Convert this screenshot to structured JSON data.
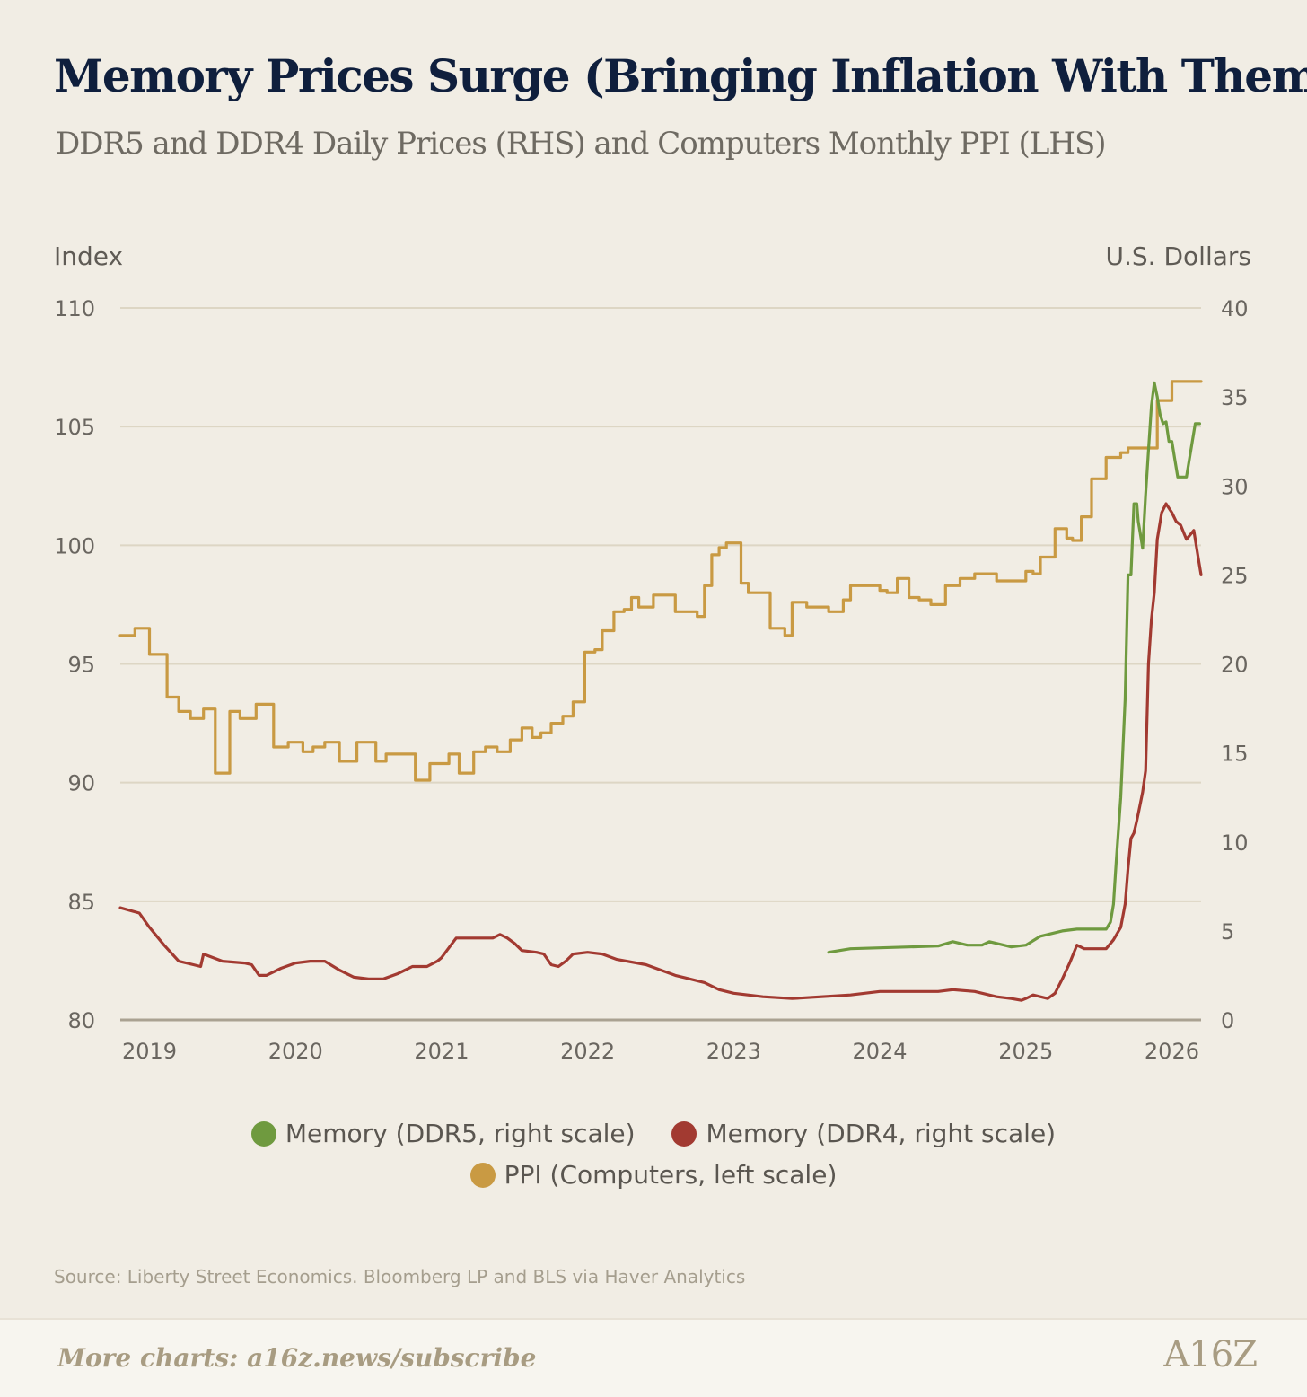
{
  "title": "Memory Prices Surge (Bringing Inflation With Them)",
  "subtitle": "DDR5 and DDR4 Daily Prices (RHS) and Computers Monthly PPI (LHS)",
  "source": "Source: Liberty Street Economics. Bloomberg LP and BLS via Haver Analytics",
  "footer": {
    "cta": "More charts: a16z.news/subscribe",
    "brand": "A16Z"
  },
  "colors": {
    "ddr5": "#6f9a3f",
    "ddr4": "#a23a31",
    "ppi": "#c99a43"
  },
  "chart_data": {
    "type": "line",
    "title": "Memory Prices Surge (Bringing Inflation With Them)",
    "subtitle": "DDR5 and DDR4 Daily Prices (RHS) and Computers Monthly PPI (LHS)",
    "ylabel_left": "Index",
    "ylabel_right": "U.S. Dollars",
    "ylim_left": [
      80,
      110
    ],
    "ylim_right": [
      0,
      40
    ],
    "xlim": [
      2018.8,
      2026.2
    ],
    "yticks_left": [
      "80",
      "85",
      "90",
      "95",
      "100",
      "105",
      "110"
    ],
    "yticks_right": [
      "0",
      "5",
      "10",
      "15",
      "20",
      "25",
      "30",
      "35",
      "40"
    ],
    "xticks": [
      "2019",
      "2020",
      "2021",
      "2022",
      "2023",
      "2024",
      "2025",
      "2026"
    ],
    "grid": true,
    "legend_position": "bottom",
    "series": [
      {
        "name": "Memory (DDR5, right scale)",
        "axis": "right",
        "color": "#6f9a3f",
        "step": false,
        "x": [
          2023.65,
          2023.8,
          2024.0,
          2024.2,
          2024.4,
          2024.5,
          2024.6,
          2024.7,
          2024.75,
          2024.85,
          2024.9,
          2025.0,
          2025.1,
          2025.25,
          2025.35,
          2025.4,
          2025.55,
          2025.58,
          2025.6,
          2025.62,
          2025.65,
          2025.68,
          2025.7,
          2025.72,
          2025.74,
          2025.76,
          2025.77,
          2025.78,
          2025.8,
          2025.82,
          2025.84,
          2025.86,
          2025.88,
          2025.9,
          2025.92,
          2025.94,
          2025.96,
          2025.98,
          2026.0,
          2026.02,
          2026.04,
          2026.06,
          2026.1,
          2026.13,
          2026.16,
          2026.19
        ],
        "y": [
          3.8,
          4.0,
          4.05,
          4.1,
          4.15,
          4.4,
          4.2,
          4.2,
          4.4,
          4.2,
          4.1,
          4.2,
          4.7,
          5.0,
          5.1,
          5.1,
          5.1,
          5.5,
          6.5,
          9.0,
          12.5,
          18.0,
          25.0,
          25.0,
          29.0,
          29.0,
          28.0,
          27.5,
          26.5,
          29.5,
          32.0,
          34.5,
          35.8,
          35.0,
          34.0,
          33.5,
          33.6,
          32.5,
          32.5,
          31.5,
          30.5,
          30.5,
          30.5,
          32.0,
          33.5,
          33.5
        ]
      },
      {
        "name": "Memory (DDR4, right scale)",
        "axis": "right",
        "color": "#a23a31",
        "step": false,
        "x": [
          2018.8,
          2018.93,
          2019.0,
          2019.1,
          2019.2,
          2019.3,
          2019.35,
          2019.37,
          2019.5,
          2019.65,
          2019.7,
          2019.75,
          2019.8,
          2019.9,
          2020.0,
          2020.1,
          2020.2,
          2020.3,
          2020.4,
          2020.5,
          2020.6,
          2020.7,
          2020.75,
          2020.8,
          2020.9,
          2020.97,
          2021.0,
          2021.1,
          2021.2,
          2021.3,
          2021.35,
          2021.4,
          2021.45,
          2021.5,
          2021.55,
          2021.65,
          2021.7,
          2021.75,
          2021.8,
          2021.85,
          2021.9,
          2022.0,
          2022.1,
          2022.2,
          2022.4,
          2022.6,
          2022.8,
          2022.9,
          2023.0,
          2023.2,
          2023.4,
          2023.6,
          2023.8,
          2024.0,
          2024.2,
          2024.4,
          2024.5,
          2024.65,
          2024.8,
          2024.9,
          2024.97,
          2025.0,
          2025.05,
          2025.1,
          2025.15,
          2025.2,
          2025.25,
          2025.3,
          2025.35,
          2025.4,
          2025.45,
          2025.5,
          2025.55,
          2025.6,
          2025.65,
          2025.68,
          2025.7,
          2025.72,
          2025.74,
          2025.76,
          2025.78,
          2025.8,
          2025.82,
          2025.84,
          2025.86,
          2025.88,
          2025.9,
          2025.93,
          2025.96,
          2026.0,
          2026.03,
          2026.06,
          2026.1,
          2026.15,
          2026.18,
          2026.2
        ],
        "y": [
          6.3,
          6.0,
          5.2,
          4.2,
          3.3,
          3.1,
          3.0,
          3.7,
          3.3,
          3.2,
          3.1,
          2.5,
          2.5,
          2.9,
          3.2,
          3.3,
          3.3,
          2.8,
          2.4,
          2.3,
          2.3,
          2.6,
          2.8,
          3.0,
          3.0,
          3.3,
          3.5,
          4.6,
          4.6,
          4.6,
          4.6,
          4.8,
          4.6,
          4.3,
          3.9,
          3.8,
          3.7,
          3.1,
          3.0,
          3.3,
          3.7,
          3.8,
          3.7,
          3.4,
          3.1,
          2.5,
          2.1,
          1.7,
          1.5,
          1.3,
          1.2,
          1.3,
          1.4,
          1.6,
          1.6,
          1.6,
          1.7,
          1.6,
          1.3,
          1.2,
          1.1,
          1.2,
          1.4,
          1.3,
          1.2,
          1.5,
          2.3,
          3.2,
          4.2,
          4.0,
          4.0,
          4.0,
          4.0,
          4.5,
          5.2,
          6.5,
          8.5,
          10.2,
          10.5,
          11.2,
          12.0,
          12.8,
          14.0,
          20.0,
          22.5,
          24.0,
          27.0,
          28.5,
          29.0,
          28.5,
          28.0,
          27.8,
          27.0,
          27.5,
          26.0,
          25.0
        ]
      },
      {
        "name": "PPI (Computers, left scale)",
        "axis": "left",
        "color": "#c99a43",
        "step": true,
        "x": [
          2018.8,
          2018.9,
          2019.0,
          2019.12,
          2019.2,
          2019.28,
          2019.37,
          2019.45,
          2019.55,
          2019.62,
          2019.73,
          2019.85,
          2019.95,
          2020.05,
          2020.12,
          2020.2,
          2020.3,
          2020.42,
          2020.55,
          2020.62,
          2020.7,
          2020.82,
          2020.92,
          2020.98,
          2021.05,
          2021.12,
          2021.22,
          2021.3,
          2021.38,
          2021.47,
          2021.55,
          2021.62,
          2021.68,
          2021.75,
          2021.83,
          2021.9,
          2021.95,
          2021.98,
          2022.05,
          2022.1,
          2022.18,
          2022.25,
          2022.3,
          2022.35,
          2022.45,
          2022.6,
          2022.75,
          2022.8,
          2022.85,
          2022.9,
          2022.95,
          2023.05,
          2023.1,
          2023.25,
          2023.35,
          2023.4,
          2023.5,
          2023.65,
          2023.75,
          2023.8,
          2024.0,
          2024.05,
          2024.12,
          2024.2,
          2024.27,
          2024.35,
          2024.45,
          2024.55,
          2024.65,
          2024.8,
          2024.97,
          2025.0,
          2025.05,
          2025.1,
          2025.2,
          2025.28,
          2025.32,
          2025.38,
          2025.45,
          2025.55,
          2025.65,
          2025.7,
          2025.75,
          2025.83,
          2025.9,
          2025.95,
          2026.0,
          2026.05,
          2026.1,
          2026.2
        ],
        "y": [
          96.2,
          96.5,
          95.4,
          93.6,
          93.0,
          92.7,
          93.1,
          90.4,
          93.0,
          92.7,
          93.3,
          91.5,
          91.7,
          91.3,
          91.5,
          91.7,
          90.9,
          91.7,
          90.9,
          91.2,
          91.2,
          90.1,
          90.8,
          90.8,
          91.2,
          90.4,
          91.3,
          91.5,
          91.3,
          91.8,
          92.3,
          91.9,
          92.1,
          92.5,
          92.8,
          93.4,
          93.4,
          95.5,
          95.6,
          96.4,
          97.2,
          97.3,
          97.8,
          97.4,
          97.9,
          97.2,
          97.0,
          98.3,
          99.6,
          99.9,
          100.1,
          98.4,
          98.0,
          96.5,
          96.2,
          97.6,
          97.4,
          97.2,
          97.7,
          98.3,
          98.1,
          98.0,
          98.6,
          97.8,
          97.7,
          97.5,
          98.3,
          98.6,
          98.8,
          98.5,
          98.5,
          98.9,
          98.8,
          99.5,
          100.7,
          100.3,
          100.2,
          101.2,
          102.8,
          103.7,
          103.9,
          104.1,
          104.1,
          104.1,
          106.1,
          106.1,
          106.9,
          106.9,
          106.9,
          106.9
        ]
      }
    ]
  }
}
